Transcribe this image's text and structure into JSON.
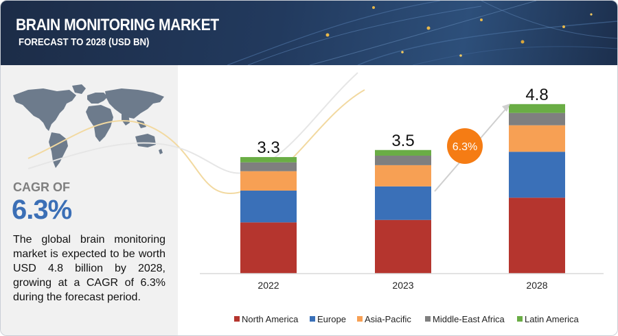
{
  "header": {
    "title": "BRAIN MONITORING MARKET",
    "subtitle": "FORECAST TO 2028 (USD BN)"
  },
  "sidebar": {
    "cagr_label": "CAGR OF",
    "cagr_value": "6.3%",
    "description": "The global brain monitoring market is expected to be worth USD  4.8 billion by 2028, growing at a CAGR of 6.3% during the forecast period.",
    "map_icon": "world-map-icon"
  },
  "colors": {
    "banner": "#1e3150",
    "north_america": "#b5352e",
    "europe": "#3a70b8",
    "asia_pacific": "#f7a054",
    "middle_east_africa": "#7f7f7f",
    "latin_america": "#6aad45",
    "cagr_bubble": "#f57c14",
    "accent_blue": "#3b6fb6"
  },
  "chart_data": {
    "type": "bar",
    "stacked": true,
    "categories": [
      "2022",
      "2023",
      "2028"
    ],
    "totals": [
      "3.3",
      "3.5",
      "4.8"
    ],
    "series": [
      {
        "name": "North America",
        "values": [
          1.45,
          1.52,
          2.15
        ]
      },
      {
        "name": "Europe",
        "values": [
          0.9,
          0.95,
          1.3
        ]
      },
      {
        "name": "Asia-Pacific",
        "values": [
          0.55,
          0.6,
          0.75
        ]
      },
      {
        "name": "Middle-East Africa",
        "values": [
          0.25,
          0.27,
          0.35
        ]
      },
      {
        "name": "Latin America",
        "values": [
          0.15,
          0.16,
          0.25
        ]
      }
    ],
    "cagr_callout": "6.3%",
    "legend_position": "bottom",
    "grid": false
  }
}
